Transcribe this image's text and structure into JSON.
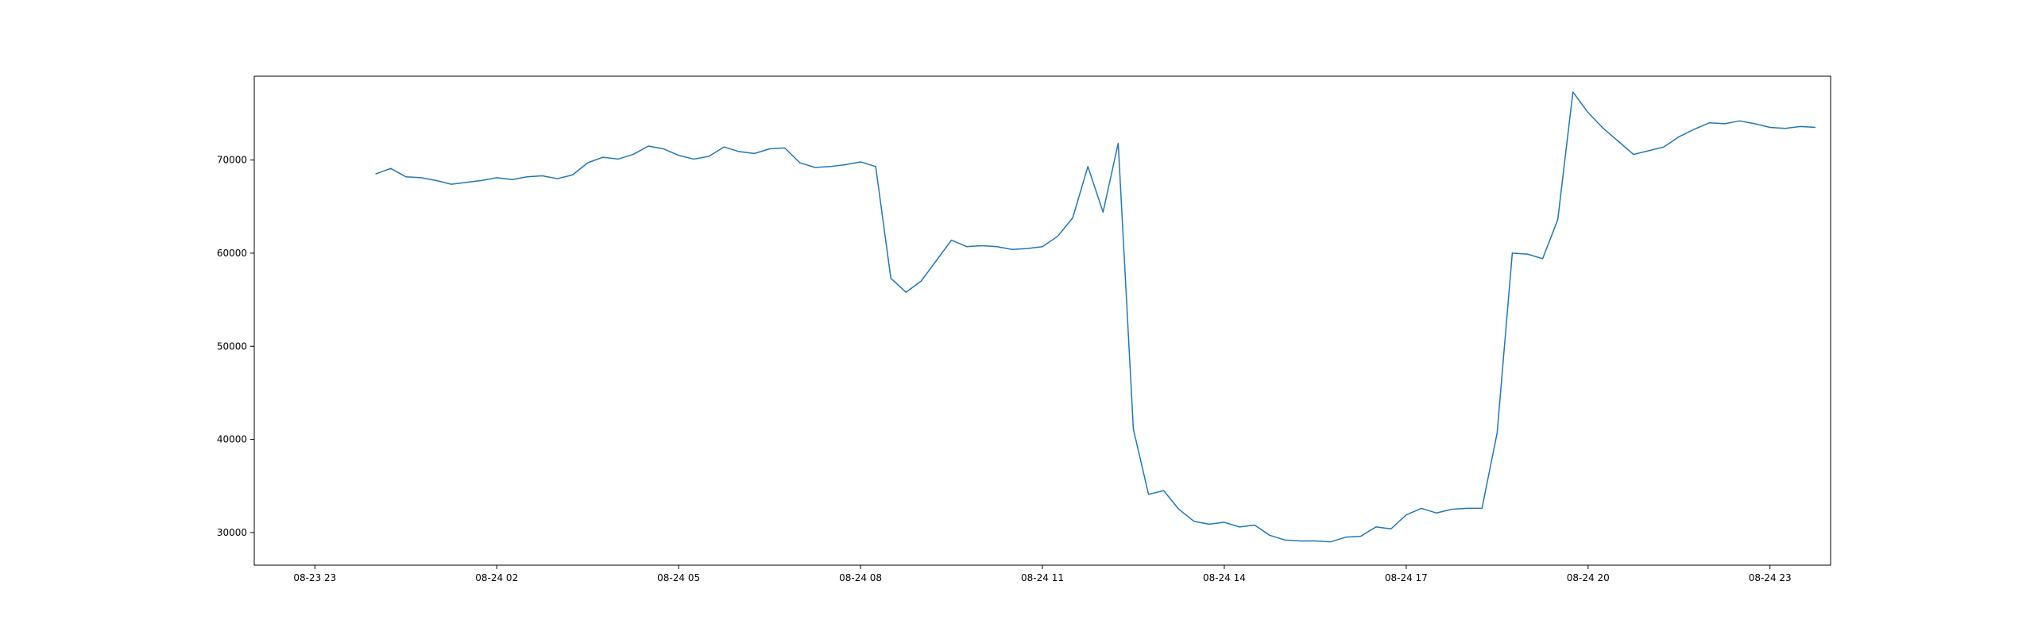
{
  "chart_data": {
    "type": "line",
    "title": "",
    "xlabel": "",
    "ylabel": "",
    "x_start": "08-23 23:00",
    "x_step_minutes": 15,
    "x_unit": "time",
    "xlim": [
      "08-23 22:00",
      "08-25 00:00"
    ],
    "ylim": [
      26500,
      79000
    ],
    "x_ticks": [
      "08-23 23",
      "08-24 02",
      "08-24 05",
      "08-24 08",
      "08-24 11",
      "08-24 14",
      "08-24 17",
      "08-24 20",
      "08-24 23"
    ],
    "y_ticks": [
      30000,
      40000,
      50000,
      60000,
      70000
    ],
    "grid": false,
    "legend": "none",
    "series": [
      {
        "color": "#1f77b4",
        "x": [
          "08-24 00:00",
          "08-24 00:15",
          "08-24 00:30",
          "08-24 00:45",
          "08-24 01:00",
          "08-24 01:15",
          "08-24 01:30",
          "08-24 01:45",
          "08-24 02:00",
          "08-24 02:15",
          "08-24 02:30",
          "08-24 02:45",
          "08-24 03:00",
          "08-24 03:15",
          "08-24 03:30",
          "08-24 03:45",
          "08-24 04:00",
          "08-24 04:15",
          "08-24 04:30",
          "08-24 04:45",
          "08-24 05:00",
          "08-24 05:15",
          "08-24 05:30",
          "08-24 05:45",
          "08-24 06:00",
          "08-24 06:15",
          "08-24 06:30",
          "08-24 06:45",
          "08-24 07:00",
          "08-24 07:15",
          "08-24 07:30",
          "08-24 07:45",
          "08-24 08:00",
          "08-24 08:15",
          "08-24 08:30",
          "08-24 08:45",
          "08-24 09:00",
          "08-24 09:15",
          "08-24 09:30",
          "08-24 09:45",
          "08-24 10:00",
          "08-24 10:15",
          "08-24 10:30",
          "08-24 10:45",
          "08-24 11:00",
          "08-24 11:15",
          "08-24 11:30",
          "08-24 11:45",
          "08-24 12:00",
          "08-24 12:15",
          "08-24 12:30",
          "08-24 12:45",
          "08-24 13:00",
          "08-24 13:15",
          "08-24 13:30",
          "08-24 13:45",
          "08-24 14:00",
          "08-24 14:15",
          "08-24 14:30",
          "08-24 14:45",
          "08-24 15:00",
          "08-24 15:15",
          "08-24 15:30",
          "08-24 15:45",
          "08-24 16:00",
          "08-24 16:15",
          "08-24 16:30",
          "08-24 16:45",
          "08-24 17:00",
          "08-24 17:15",
          "08-24 17:30",
          "08-24 17:45",
          "08-24 18:00",
          "08-24 18:15",
          "08-24 18:30",
          "08-24 18:45",
          "08-24 19:00",
          "08-24 19:15",
          "08-24 19:30",
          "08-24 19:45",
          "08-24 20:00",
          "08-24 20:15",
          "08-24 20:30",
          "08-24 20:45",
          "08-24 21:00",
          "08-24 21:15",
          "08-24 21:30",
          "08-24 21:45",
          "08-24 22:00",
          "08-24 22:15",
          "08-24 22:30",
          "08-24 22:45",
          "08-24 23:00",
          "08-24 23:15",
          "08-24 23:30",
          "08-24 23:45"
        ],
        "values": [
          68500,
          69100,
          68200,
          68100,
          67800,
          67400,
          67600,
          67800,
          68100,
          67900,
          68200,
          68300,
          68000,
          68400,
          69700,
          70300,
          70100,
          70600,
          71500,
          71200,
          70500,
          70100,
          70400,
          71400,
          70900,
          70700,
          71200,
          71300,
          69700,
          69200,
          69300,
          69500,
          69800,
          69300,
          57300,
          55800,
          57000,
          59200,
          61400,
          60700,
          60800,
          60700,
          60400,
          60500,
          60700,
          61800,
          63800,
          69300,
          64400,
          71800,
          41100,
          34100,
          34500,
          32500,
          31200,
          30900,
          31100,
          30600,
          30800,
          29700,
          29200,
          29100,
          29100,
          29000,
          29500,
          29600,
          30600,
          30400,
          31900,
          32600,
          32100,
          32500,
          32600,
          32600,
          40700,
          60000,
          59900,
          59400,
          63600,
          77300,
          75100,
          73400,
          72000,
          70600,
          71000,
          71400,
          72500,
          73300,
          74000,
          73900,
          74200,
          73900,
          73500,
          73400,
          73600,
          73500
        ]
      }
    ]
  }
}
